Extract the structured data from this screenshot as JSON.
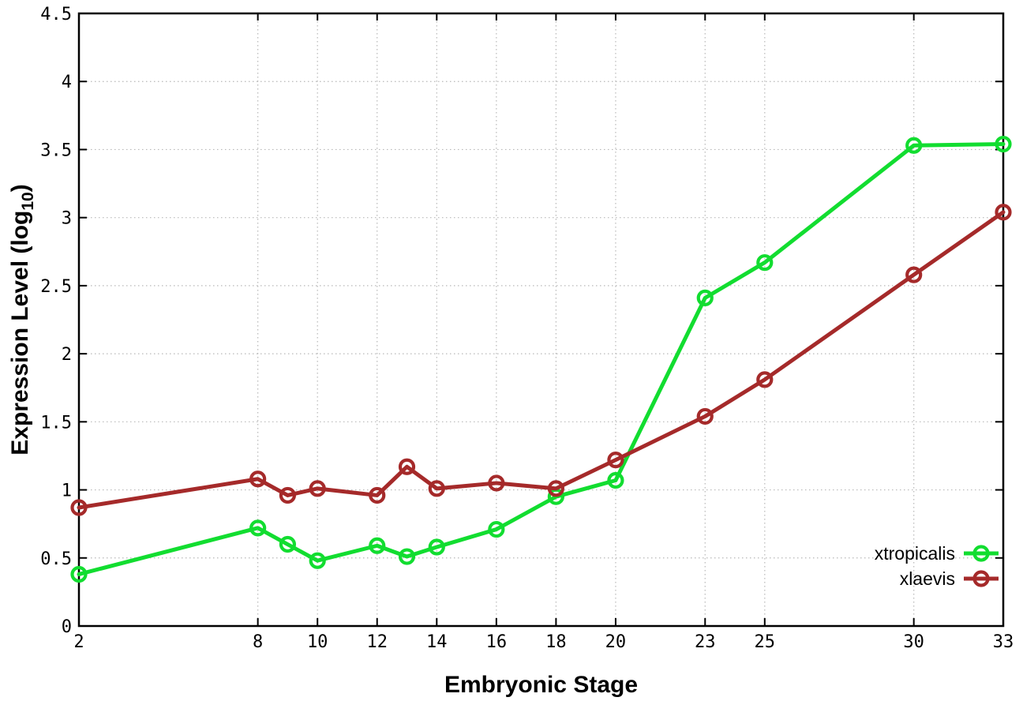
{
  "chart_data": {
    "type": "line",
    "title": "",
    "xlabel": "Embryonic Stage",
    "ylabel": "Expression Level (log10)",
    "ylabel_parts": {
      "pre": "Expression Level (log",
      "sub": "10",
      "post": ")"
    },
    "xlim": [
      2,
      33
    ],
    "ylim": [
      0,
      4.5
    ],
    "grid": true,
    "legend_position": "inside-bottom-right",
    "xtick_values": [
      2,
      8,
      10,
      12,
      14,
      16,
      18,
      20,
      23,
      25,
      30,
      33
    ],
    "xtick_labels": [
      "2",
      "8",
      "10",
      "12",
      "14",
      "16",
      "18",
      "20",
      "23",
      "25",
      "30",
      "33"
    ],
    "ytick_values": [
      0,
      0.5,
      1,
      1.5,
      2,
      2.5,
      3,
      3.5,
      4,
      4.5
    ],
    "ytick_labels": [
      "0",
      "0.5",
      "1",
      "1.5",
      "2",
      "2.5",
      "3",
      "3.5",
      "4",
      "4.5"
    ],
    "x": [
      2,
      8,
      9,
      10,
      12,
      13,
      14,
      16,
      18,
      20,
      23,
      25,
      30,
      33
    ],
    "series": [
      {
        "name": "xtropicalis",
        "color": "#12dd30",
        "values": [
          0.38,
          0.72,
          0.6,
          0.48,
          0.59,
          0.51,
          0.58,
          0.71,
          0.95,
          1.07,
          2.41,
          2.67,
          3.53,
          3.54
        ]
      },
      {
        "name": "xlaevis",
        "color": "#a52a2a",
        "values": [
          0.87,
          1.08,
          0.96,
          1.01,
          0.96,
          1.17,
          1.01,
          1.05,
          1.01,
          1.22,
          1.54,
          1.81,
          2.58,
          3.04
        ]
      }
    ],
    "grid_color": "#b8b8b8",
    "border_color": "#000000"
  }
}
